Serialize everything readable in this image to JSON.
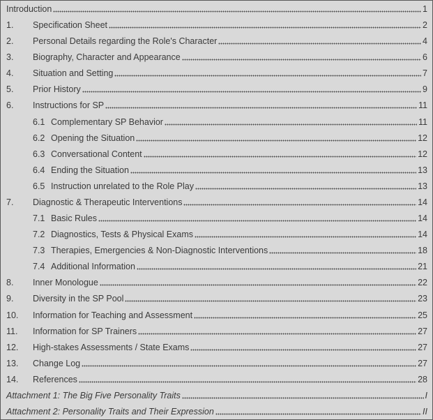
{
  "toc": [
    {
      "num": "",
      "title": "Introduction",
      "page": "1",
      "level": 0
    },
    {
      "num": "1.",
      "title": "Specification Sheet",
      "page": "2",
      "level": 1
    },
    {
      "num": "2.",
      "title": "Personal Details regarding the Role's Character",
      "page": "4",
      "level": 1
    },
    {
      "num": "3.",
      "title": "Biography, Character and Appearance",
      "page": "6",
      "level": 1
    },
    {
      "num": "4.",
      "title": "Situation and Setting",
      "page": "7",
      "level": 1
    },
    {
      "num": "5.",
      "title": "Prior History",
      "page": "9",
      "level": 1
    },
    {
      "num": "6.",
      "title": "Instructions for SP",
      "page": "11",
      "level": 1
    },
    {
      "num": "6.1",
      "title": "Complementary SP Behavior",
      "page": "11",
      "level": 2
    },
    {
      "num": "6.2",
      "title": "Opening the Situation",
      "page": "12",
      "level": 2
    },
    {
      "num": "6.3",
      "title": "Conversational Content",
      "page": "12",
      "level": 2
    },
    {
      "num": "6.4",
      "title": "Ending the Situation",
      "page": "13",
      "level": 2
    },
    {
      "num": "6.5",
      "title": "Instruction unrelated to the Role Play",
      "page": "13",
      "level": 2
    },
    {
      "num": "7.",
      "title": "Diagnostic & Therapeutic Interventions",
      "page": "14",
      "level": 1
    },
    {
      "num": "7.1",
      "title": "Basic Rules",
      "page": "14",
      "level": 2
    },
    {
      "num": "7.2",
      "title": "Diagnostics, Tests & Physical Exams",
      "page": "14",
      "level": 2
    },
    {
      "num": "7.3",
      "title": "Therapies, Emergencies & Non-Diagnostic Interventions",
      "page": "18",
      "level": 2
    },
    {
      "num": "7.4",
      "title": "Additional Information",
      "page": "21",
      "level": 2
    },
    {
      "num": "8.",
      "title": "Inner Monologue",
      "page": "22",
      "level": 1
    },
    {
      "num": "9.",
      "title": "Diversity in the SP Pool",
      "page": "23",
      "level": 1
    },
    {
      "num": "10.",
      "title": "Information for Teaching and Assessment",
      "page": "25",
      "level": 1
    },
    {
      "num": "11.",
      "title": "Information for SP Trainers",
      "page": "27",
      "level": 1
    },
    {
      "num": "12.",
      "title": "High-stakes Assessments / State Exams",
      "page": "27",
      "level": 1
    },
    {
      "num": "13.",
      "title": "Change Log",
      "page": "27",
      "level": 1
    },
    {
      "num": "14.",
      "title": "References",
      "page": "28",
      "level": 1
    },
    {
      "num": "",
      "title": "Attachment 1: The Big Five Personality Traits",
      "page": "I",
      "level": "attachment"
    },
    {
      "num": "",
      "title": "Attachment 2: Personality Traits and Their Expression",
      "page": "II",
      "level": "attachment"
    }
  ]
}
